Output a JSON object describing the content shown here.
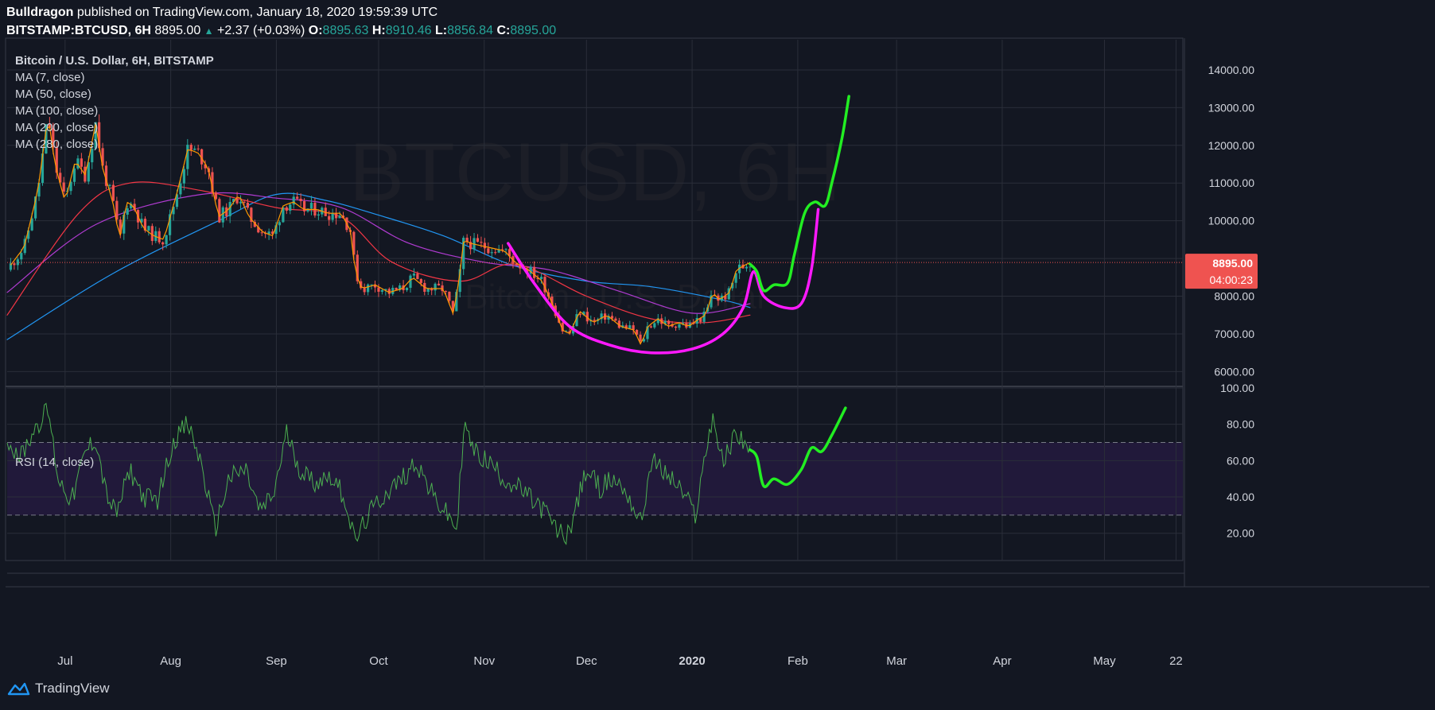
{
  "header": {
    "author": "Bulldragon",
    "published_text": "published on TradingView.com, January 18, 2020 19:59:39 UTC",
    "symbol": "BITSTAMP:BTCUSD, 6H",
    "last": "8895.00",
    "change": "+2.37 (+0.03%)",
    "o_label": "O:",
    "o_val": "8895.63",
    "h_label": "H:",
    "h_val": "8910.46",
    "l_label": "L:",
    "l_val": "8856.84",
    "c_label": "C:",
    "c_val": "8895.00"
  },
  "legend": {
    "main": "Bitcoin / U.S. Dollar, 6H, BITSTAMP",
    "studies": [
      "MA (7, close)",
      "MA (50, close)",
      "MA (100, close)",
      "MA (200, close)",
      "MA (280, close)"
    ],
    "rsi": "RSI (14, close)"
  },
  "watermark": {
    "big": "BTCUSD, 6H",
    "small": "Bitcoin / U.S. Dollar"
  },
  "price_label": {
    "value": "8895.00",
    "countdown": "04:00:23"
  },
  "footer": {
    "brand": "TradingView"
  },
  "colors": {
    "background": "#131722",
    "grid": "#2a2e39",
    "up": "#26a69a",
    "down": "#ef5350",
    "ma7": "#ff9800",
    "ma50": "#f23645",
    "ma100": "#b03bd1",
    "ma200": "#2196f3",
    "rsi": "#4caf50",
    "cup": "#ff19ff",
    "projection": "#22ee22",
    "rsi_band": "#21193a"
  },
  "chart_data": [
    {
      "type": "candlestick",
      "title": "Bitcoin / U.S. Dollar, 6H, BITSTAMP",
      "x_ticks": [
        "Jul",
        "Aug",
        "Sep",
        "Oct",
        "Nov",
        "Dec",
        "2020",
        "Feb",
        "Mar",
        "Apr",
        "May",
        "22"
      ],
      "y_ticks": [
        "6000.00",
        "7000.00",
        "8000.00",
        "9000.00",
        "10000.00",
        "11000.00",
        "12000.00",
        "13000.00",
        "14000.00"
      ],
      "ylim": [
        5650,
        14800
      ],
      "x_start": "2019-06-14",
      "x_end": "2020-05-24",
      "last_price": 8895,
      "price_path": [
        [
          "2019-06-14",
          8700
        ],
        [
          "2019-06-19",
          9300
        ],
        [
          "2019-06-23",
          10800
        ],
        [
          "2019-06-26",
          12800
        ],
        [
          "2019-06-28",
          11500
        ],
        [
          "2019-07-01",
          10500
        ],
        [
          "2019-07-04",
          11600
        ],
        [
          "2019-07-07",
          11200
        ],
        [
          "2019-07-10",
          12600
        ],
        [
          "2019-07-12",
          11400
        ],
        [
          "2019-07-15",
          10500
        ],
        [
          "2019-07-17",
          9500
        ],
        [
          "2019-07-19",
          10500
        ],
        [
          "2019-07-21",
          10400
        ],
        [
          "2019-07-24",
          9800
        ],
        [
          "2019-07-27",
          9600
        ],
        [
          "2019-07-30",
          9500
        ],
        [
          "2019-08-03",
          10800
        ],
        [
          "2019-08-06",
          11900
        ],
        [
          "2019-08-09",
          11800
        ],
        [
          "2019-08-12",
          11400
        ],
        [
          "2019-08-15",
          10100
        ],
        [
          "2019-08-18",
          10300
        ],
        [
          "2019-08-21",
          10700
        ],
        [
          "2019-08-24",
          10100
        ],
        [
          "2019-08-28",
          9700
        ],
        [
          "2019-08-31",
          9600
        ],
        [
          "2019-09-03",
          10400
        ],
        [
          "2019-09-06",
          10500
        ],
        [
          "2019-09-09",
          10300
        ],
        [
          "2019-09-13",
          10300
        ],
        [
          "2019-09-16",
          10200
        ],
        [
          "2019-09-20",
          10200
        ],
        [
          "2019-09-23",
          9700
        ],
        [
          "2019-09-24",
          8700
        ],
        [
          "2019-09-26",
          8200
        ],
        [
          "2019-09-30",
          8300
        ],
        [
          "2019-10-04",
          8100
        ],
        [
          "2019-10-08",
          8200
        ],
        [
          "2019-10-11",
          8500
        ],
        [
          "2019-10-15",
          8200
        ],
        [
          "2019-10-20",
          8200
        ],
        [
          "2019-10-23",
          7500
        ],
        [
          "2019-10-25",
          8700
        ],
        [
          "2019-10-26",
          9500
        ],
        [
          "2019-10-28",
          9400
        ],
        [
          "2019-11-02",
          9300
        ],
        [
          "2019-11-07",
          9200
        ],
        [
          "2019-11-10",
          8900
        ],
        [
          "2019-11-14",
          8700
        ],
        [
          "2019-11-18",
          8400
        ],
        [
          "2019-11-21",
          7800
        ],
        [
          "2019-11-24",
          7100
        ],
        [
          "2019-11-26",
          7000
        ],
        [
          "2019-11-29",
          7600
        ],
        [
          "2019-12-03",
          7300
        ],
        [
          "2019-12-07",
          7500
        ],
        [
          "2019-12-11",
          7200
        ],
        [
          "2019-12-15",
          7100
        ],
        [
          "2019-12-17",
          6700
        ],
        [
          "2019-12-19",
          7200
        ],
        [
          "2019-12-22",
          7400
        ],
        [
          "2019-12-25",
          7200
        ],
        [
          "2019-12-28",
          7300
        ],
        [
          "2019-12-31",
          7200
        ],
        [
          "2020-01-03",
          7400
        ],
        [
          "2020-01-05",
          7500
        ],
        [
          "2020-01-07",
          8100
        ],
        [
          "2020-01-09",
          7900
        ],
        [
          "2020-01-12",
          8100
        ],
        [
          "2020-01-14",
          8700
        ],
        [
          "2020-01-16",
          8800
        ],
        [
          "2020-01-18",
          8895
        ]
      ],
      "moving_averages": [
        {
          "name": "MA (200, close)",
          "points": [
            [
              "2019-06-14",
              6850
            ],
            [
              "2019-07-15",
              8600
            ],
            [
              "2019-08-15",
              10000
            ],
            [
              "2019-09-01",
              10700
            ],
            [
              "2019-09-15",
              10550
            ],
            [
              "2019-10-01",
              10150
            ],
            [
              "2019-10-20",
              9600
            ],
            [
              "2019-11-10",
              8800
            ],
            [
              "2019-12-01",
              8400
            ],
            [
              "2019-12-20",
              8250
            ],
            [
              "2020-01-10",
              7900
            ],
            [
              "2020-01-18",
              7700
            ]
          ]
        },
        {
          "name": "MA (100, close)",
          "points": [
            [
              "2019-06-14",
              8100
            ],
            [
              "2019-07-10",
              9900
            ],
            [
              "2019-08-10",
              10700
            ],
            [
              "2019-09-01",
              10600
            ],
            [
              "2019-09-20",
              10350
            ],
            [
              "2019-10-10",
              9400
            ],
            [
              "2019-11-01",
              8900
            ],
            [
              "2019-11-20",
              8700
            ],
            [
              "2019-12-10",
              8150
            ],
            [
              "2020-01-01",
              7550
            ],
            [
              "2020-01-18",
              7800
            ]
          ]
        },
        {
          "name": "MA (50, close)",
          "points": [
            [
              "2019-06-14",
              7500
            ],
            [
              "2019-07-05",
              10200
            ],
            [
              "2019-07-20",
              11000
            ],
            [
              "2019-08-10",
              10800
            ],
            [
              "2019-09-01",
              10350
            ],
            [
              "2019-09-20",
              10100
            ],
            [
              "2019-10-05",
              8900
            ],
            [
              "2019-10-25",
              8400
            ],
            [
              "2019-11-10",
              8850
            ],
            [
              "2019-12-01",
              8000
            ],
            [
              "2019-12-20",
              7400
            ],
            [
              "2020-01-05",
              7300
            ],
            [
              "2020-01-18",
              7500
            ]
          ]
        }
      ],
      "drawings": {
        "cup_path": [
          [
            "2019-11-08",
            9400
          ],
          [
            "2019-11-16",
            8300
          ],
          [
            "2019-11-26",
            7200
          ],
          [
            "2019-12-08",
            6700
          ],
          [
            "2019-12-20",
            6500
          ],
          [
            "2020-01-01",
            6600
          ],
          [
            "2020-01-10",
            7000
          ],
          [
            "2020-01-16",
            7700
          ],
          [
            "2020-01-19",
            8650
          ],
          [
            "2020-01-22",
            8000
          ],
          [
            "2020-01-28",
            7700
          ],
          [
            "2020-02-02",
            7800
          ],
          [
            "2020-02-05",
            8700
          ],
          [
            "2020-02-07",
            10300
          ]
        ],
        "projection_path": [
          [
            "2020-01-18",
            8850
          ],
          [
            "2020-01-20",
            8650
          ],
          [
            "2020-01-22",
            8150
          ],
          [
            "2020-01-25",
            8300
          ],
          [
            "2020-01-29",
            8350
          ],
          [
            "2020-01-31",
            9100
          ],
          [
            "2020-02-03",
            10200
          ],
          [
            "2020-02-06",
            10500
          ],
          [
            "2020-02-09",
            10400
          ],
          [
            "2020-02-11",
            11000
          ],
          [
            "2020-02-14",
            12200
          ],
          [
            "2020-02-16",
            13300
          ]
        ]
      }
    },
    {
      "type": "line",
      "title": "RSI (14, close)",
      "y_ticks": [
        "20.00",
        "40.00",
        "60.00",
        "80.00",
        "100.00"
      ],
      "ylim": [
        5,
        100
      ],
      "bands": {
        "upper": 70,
        "lower": 30
      },
      "series": [
        {
          "name": "RSI (14, close)",
          "points": [
            [
              "2019-06-14",
              72
            ],
            [
              "2019-06-18",
              62
            ],
            [
              "2019-06-22",
              78
            ],
            [
              "2019-06-26",
              88
            ],
            [
              "2019-06-29",
              50
            ],
            [
              "2019-07-03",
              38
            ],
            [
              "2019-07-07",
              65
            ],
            [
              "2019-07-10",
              72
            ],
            [
              "2019-07-13",
              42
            ],
            [
              "2019-07-16",
              30
            ],
            [
              "2019-07-20",
              55
            ],
            [
              "2019-07-24",
              40
            ],
            [
              "2019-07-28",
              38
            ],
            [
              "2019-08-02",
              72
            ],
            [
              "2019-08-06",
              80
            ],
            [
              "2019-08-10",
              58
            ],
            [
              "2019-08-14",
              22
            ],
            [
              "2019-08-18",
              50
            ],
            [
              "2019-08-23",
              55
            ],
            [
              "2019-08-27",
              32
            ],
            [
              "2019-08-31",
              40
            ],
            [
              "2019-09-04",
              75
            ],
            [
              "2019-09-08",
              55
            ],
            [
              "2019-09-12",
              48
            ],
            [
              "2019-09-17",
              52
            ],
            [
              "2019-09-21",
              40
            ],
            [
              "2019-09-24",
              15
            ],
            [
              "2019-09-28",
              30
            ],
            [
              "2019-10-03",
              42
            ],
            [
              "2019-10-08",
              50
            ],
            [
              "2019-10-12",
              60
            ],
            [
              "2019-10-17",
              40
            ],
            [
              "2019-10-22",
              28
            ],
            [
              "2019-10-24",
              22
            ],
            [
              "2019-10-26",
              80
            ],
            [
              "2019-10-29",
              65
            ],
            [
              "2019-11-03",
              58
            ],
            [
              "2019-11-07",
              50
            ],
            [
              "2019-11-11",
              45
            ],
            [
              "2019-11-15",
              38
            ],
            [
              "2019-11-19",
              32
            ],
            [
              "2019-11-22",
              22
            ],
            [
              "2019-11-25",
              18
            ],
            [
              "2019-11-27",
              28
            ],
            [
              "2019-12-01",
              55
            ],
            [
              "2019-12-05",
              45
            ],
            [
              "2019-12-09",
              50
            ],
            [
              "2019-12-13",
              42
            ],
            [
              "2019-12-17",
              25
            ],
            [
              "2019-12-20",
              60
            ],
            [
              "2019-12-23",
              55
            ],
            [
              "2019-12-27",
              48
            ],
            [
              "2019-12-30",
              40
            ],
            [
              "2020-01-02",
              30
            ],
            [
              "2020-01-05",
              65
            ],
            [
              "2020-01-07",
              85
            ],
            [
              "2020-01-10",
              58
            ],
            [
              "2020-01-14",
              76
            ],
            [
              "2020-01-18",
              66
            ]
          ]
        }
      ],
      "drawings": {
        "projection_path": [
          [
            "2020-01-18",
            66
          ],
          [
            "2020-01-20",
            62
          ],
          [
            "2020-01-22",
            46
          ],
          [
            "2020-01-25",
            50
          ],
          [
            "2020-01-29",
            47
          ],
          [
            "2020-02-02",
            55
          ],
          [
            "2020-02-05",
            67
          ],
          [
            "2020-02-08",
            65
          ],
          [
            "2020-02-11",
            74
          ],
          [
            "2020-02-15",
            89
          ]
        ]
      }
    }
  ]
}
